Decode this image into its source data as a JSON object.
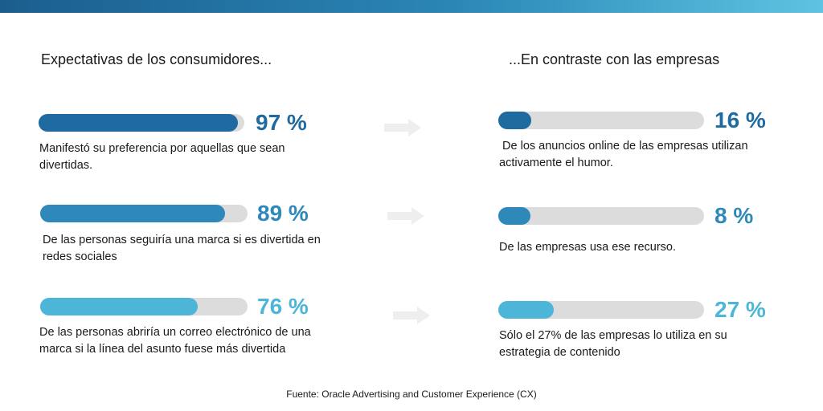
{
  "headers": {
    "left": "Expectativas de los consumidores...",
    "right": "...En contraste con las empresas"
  },
  "consumers": [
    {
      "percent_label": "97 %",
      "value": 97,
      "color": "#1f6aa0",
      "description": "Manifestó su preferencia por aquellas que sean divertidas."
    },
    {
      "percent_label": "89 %",
      "value": 89,
      "color": "#2e89ba",
      "description": "De las personas seguiría una marca si es divertida en redes sociales"
    },
    {
      "percent_label": "76 %",
      "value": 76,
      "color": "#4db6d8",
      "description": "De las personas abriría un correo electrónico de una marca si la línea del asunto fuese más divertida"
    }
  ],
  "companies": [
    {
      "percent_label": "16 %",
      "value": 16,
      "color": "#1f6aa0",
      "description": " De los anuncios online de las empresas utilizan activamente el humor."
    },
    {
      "percent_label": "8 %",
      "value": 8,
      "color": "#2e89ba",
      "description": "De las empresas usa ese recurso."
    },
    {
      "percent_label": "27 %",
      "value": 27,
      "color": "#4db6d8",
      "description": "Sólo el 27% de las empresas lo utiliza en su estrategia de contenido"
    }
  ],
  "source": "Fuente: Oracle Advertising and Customer Experience (CX)",
  "icons": {
    "arrow": "arrow-right-icon"
  },
  "colors": {
    "track": "#dcdcdc",
    "arrow": "#eeeeee"
  }
}
